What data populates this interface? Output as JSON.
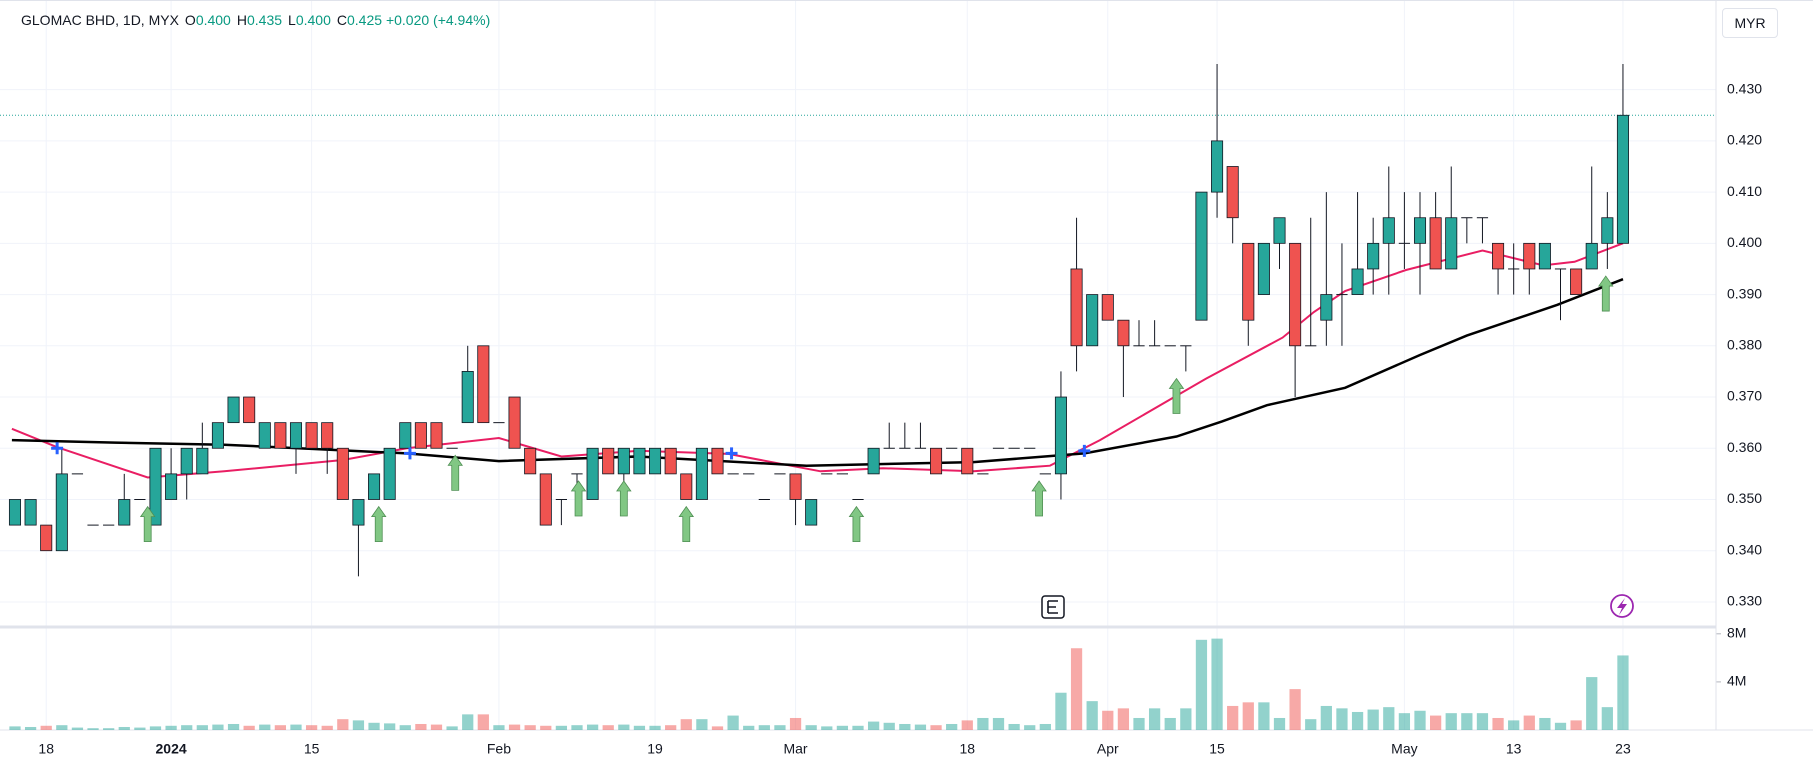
{
  "header": {
    "symbol": "GLOMAC BHD, 1D, MYX",
    "fields": [
      {
        "label": "O",
        "value": "0.400"
      },
      {
        "label": "H",
        "value": "0.435"
      },
      {
        "label": "L",
        "value": "0.400"
      },
      {
        "label": "C",
        "value": "0.425"
      }
    ],
    "change": "+0.020",
    "change_pct": "(+4.94%)",
    "currency": "MYR"
  },
  "chart_data": {
    "type": "candlestick",
    "up_color": "#26a69a",
    "down_color": "#ef5350",
    "grid": true,
    "categories": [
      null,
      null,
      "18",
      null,
      null,
      null,
      null,
      null,
      null,
      null,
      "2024",
      null,
      null,
      null,
      null,
      null,
      null,
      null,
      null,
      "15",
      null,
      null,
      null,
      null,
      null,
      null,
      null,
      null,
      null,
      null,
      null,
      "Feb",
      null,
      null,
      null,
      null,
      null,
      null,
      null,
      null,
      null,
      "19",
      null,
      null,
      null,
      null,
      null,
      null,
      null,
      null,
      "Mar",
      null,
      null,
      null,
      null,
      null,
      null,
      null,
      null,
      null,
      null,
      "18",
      null,
      null,
      null,
      null,
      null,
      null,
      null,
      null,
      "Apr",
      null,
      null,
      null,
      null,
      null,
      null,
      "15",
      null,
      null,
      null,
      null,
      null,
      null,
      null,
      null,
      null,
      null,
      null,
      "May",
      null,
      null,
      null,
      null,
      null,
      null,
      "13",
      null,
      null,
      null,
      null,
      null,
      null,
      "23"
    ],
    "xlim": [
      -0.96,
      108.96
    ],
    "ylim": [
      0.3255,
      0.4475
    ],
    "yticks": [
      {
        "value": 0.33,
        "label": "0.330"
      },
      {
        "value": 0.34,
        "label": "0.340"
      },
      {
        "value": 0.35,
        "label": "0.350"
      },
      {
        "value": 0.36,
        "label": "0.360"
      },
      {
        "value": 0.37,
        "label": "0.370"
      },
      {
        "value": 0.38,
        "label": "0.380"
      },
      {
        "value": 0.39,
        "label": "0.390"
      },
      {
        "value": 0.4,
        "label": "0.400"
      },
      {
        "value": 0.41,
        "label": "0.410"
      },
      {
        "value": 0.42,
        "label": "0.420"
      },
      {
        "value": 0.43,
        "label": "0.430"
      }
    ],
    "ohlc": [
      [
        0.345,
        0.35,
        0.345,
        0.35
      ],
      [
        0.345,
        0.35,
        0.345,
        0.35
      ],
      [
        0.345,
        0.345,
        0.34,
        0.34
      ],
      [
        0.34,
        0.36,
        0.34,
        0.355
      ],
      [
        0.355,
        0.355,
        0.355,
        0.355
      ],
      [
        0.345,
        0.345,
        0.345,
        0.345
      ],
      [
        0.345,
        0.345,
        0.345,
        0.345
      ],
      [
        0.345,
        0.355,
        0.345,
        0.35
      ],
      [
        0.35,
        0.35,
        0.35,
        0.35
      ],
      [
        0.345,
        0.36,
        0.345,
        0.36
      ],
      [
        0.35,
        0.36,
        0.35,
        0.355
      ],
      [
        0.355,
        0.36,
        0.35,
        0.36
      ],
      [
        0.355,
        0.365,
        0.355,
        0.36
      ],
      [
        0.36,
        0.365,
        0.36,
        0.365
      ],
      [
        0.365,
        0.37,
        0.365,
        0.37
      ],
      [
        0.37,
        0.37,
        0.365,
        0.365
      ],
      [
        0.36,
        0.365,
        0.36,
        0.365
      ],
      [
        0.365,
        0.365,
        0.36,
        0.36
      ],
      [
        0.36,
        0.365,
        0.355,
        0.365
      ],
      [
        0.365,
        0.365,
        0.36,
        0.36
      ],
      [
        0.365,
        0.365,
        0.355,
        0.36
      ],
      [
        0.36,
        0.36,
        0.35,
        0.35
      ],
      [
        0.345,
        0.35,
        0.335,
        0.35
      ],
      [
        0.35,
        0.355,
        0.35,
        0.355
      ],
      [
        0.35,
        0.36,
        0.35,
        0.36
      ],
      [
        0.36,
        0.365,
        0.36,
        0.365
      ],
      [
        0.365,
        0.365,
        0.36,
        0.36
      ],
      [
        0.365,
        0.365,
        0.36,
        0.36
      ],
      [
        0.36,
        0.36,
        0.36,
        0.36
      ],
      [
        0.365,
        0.38,
        0.365,
        0.375
      ],
      [
        0.38,
        0.38,
        0.365,
        0.365
      ],
      [
        0.365,
        0.365,
        0.365,
        0.365
      ],
      [
        0.37,
        0.37,
        0.36,
        0.36
      ],
      [
        0.36,
        0.36,
        0.355,
        0.355
      ],
      [
        0.355,
        0.355,
        0.345,
        0.345
      ],
      [
        0.35,
        0.35,
        0.345,
        0.35
      ],
      [
        0.355,
        0.355,
        0.35,
        0.355
      ],
      [
        0.35,
        0.36,
        0.35,
        0.36
      ],
      [
        0.36,
        0.36,
        0.355,
        0.355
      ],
      [
        0.355,
        0.36,
        0.35,
        0.36
      ],
      [
        0.355,
        0.36,
        0.355,
        0.36
      ],
      [
        0.355,
        0.36,
        0.355,
        0.36
      ],
      [
        0.36,
        0.36,
        0.355,
        0.355
      ],
      [
        0.355,
        0.355,
        0.35,
        0.35
      ],
      [
        0.35,
        0.36,
        0.35,
        0.36
      ],
      [
        0.36,
        0.36,
        0.355,
        0.355
      ],
      [
        0.355,
        0.355,
        0.355,
        0.355
      ],
      [
        0.355,
        0.355,
        0.355,
        0.355
      ],
      [
        0.35,
        0.35,
        0.35,
        0.35
      ],
      [
        0.355,
        0.355,
        0.355,
        0.355
      ],
      [
        0.355,
        0.355,
        0.345,
        0.35
      ],
      [
        0.345,
        0.35,
        0.345,
        0.35
      ],
      [
        0.355,
        0.355,
        0.355,
        0.355
      ],
      [
        0.355,
        0.355,
        0.355,
        0.355
      ],
      [
        0.35,
        0.35,
        0.35,
        0.35
      ],
      [
        0.355,
        0.36,
        0.355,
        0.36
      ],
      [
        0.36,
        0.365,
        0.36,
        0.36
      ],
      [
        0.36,
        0.365,
        0.36,
        0.36
      ],
      [
        0.36,
        0.365,
        0.36,
        0.36
      ],
      [
        0.36,
        0.36,
        0.355,
        0.355
      ],
      [
        0.36,
        0.36,
        0.36,
        0.36
      ],
      [
        0.36,
        0.36,
        0.355,
        0.355
      ],
      [
        0.355,
        0.355,
        0.355,
        0.355
      ],
      [
        0.36,
        0.36,
        0.36,
        0.36
      ],
      [
        0.36,
        0.36,
        0.36,
        0.36
      ],
      [
        0.36,
        0.36,
        0.36,
        0.36
      ],
      [
        0.355,
        0.355,
        0.355,
        0.355
      ],
      [
        0.355,
        0.375,
        0.35,
        0.37
      ],
      [
        0.395,
        0.405,
        0.375,
        0.38
      ],
      [
        0.38,
        0.39,
        0.38,
        0.39
      ],
      [
        0.39,
        0.39,
        0.385,
        0.385
      ],
      [
        0.385,
        0.385,
        0.37,
        0.38
      ],
      [
        0.38,
        0.385,
        0.38,
        0.38
      ],
      [
        0.38,
        0.385,
        0.38,
        0.38
      ],
      [
        0.38,
        0.38,
        0.38,
        0.38
      ],
      [
        0.38,
        0.38,
        0.375,
        0.38
      ],
      [
        0.385,
        0.41,
        0.385,
        0.41
      ],
      [
        0.41,
        0.435,
        0.405,
        0.42
      ],
      [
        0.415,
        0.415,
        0.4,
        0.405
      ],
      [
        0.4,
        0.4,
        0.38,
        0.385
      ],
      [
        0.39,
        0.4,
        0.39,
        0.4
      ],
      [
        0.4,
        0.405,
        0.395,
        0.405
      ],
      [
        0.4,
        0.4,
        0.37,
        0.38
      ],
      [
        0.38,
        0.405,
        0.38,
        0.38
      ],
      [
        0.385,
        0.41,
        0.38,
        0.39
      ],
      [
        0.39,
        0.4,
        0.38,
        0.39
      ],
      [
        0.39,
        0.41,
        0.39,
        0.395
      ],
      [
        0.395,
        0.405,
        0.39,
        0.4
      ],
      [
        0.4,
        0.415,
        0.39,
        0.405
      ],
      [
        0.4,
        0.41,
        0.395,
        0.4
      ],
      [
        0.4,
        0.41,
        0.39,
        0.405
      ],
      [
        0.405,
        0.41,
        0.395,
        0.395
      ],
      [
        0.395,
        0.415,
        0.395,
        0.405
      ],
      [
        0.405,
        0.405,
        0.4,
        0.405
      ],
      [
        0.405,
        0.405,
        0.4,
        0.405
      ],
      [
        0.4,
        0.4,
        0.39,
        0.395
      ],
      [
        0.395,
        0.4,
        0.39,
        0.395
      ],
      [
        0.4,
        0.4,
        0.39,
        0.395
      ],
      [
        0.395,
        0.4,
        0.395,
        0.4
      ],
      [
        0.395,
        0.395,
        0.385,
        0.395
      ],
      [
        0.395,
        0.395,
        0.39,
        0.39
      ],
      [
        0.395,
        0.415,
        0.395,
        0.4
      ],
      [
        0.4,
        0.41,
        0.395,
        0.405
      ],
      [
        0.4,
        0.435,
        0.4,
        0.425
      ]
    ],
    "volume": [
      300000,
      250000,
      350000,
      400000,
      200000,
      150000,
      150000,
      250000,
      200000,
      300000,
      350000,
      400000,
      400000,
      450000,
      500000,
      350000,
      450000,
      400000,
      450000,
      400000,
      350000,
      900000,
      800000,
      600000,
      550000,
      400000,
      500000,
      450000,
      300000,
      1300000,
      1300000,
      400000,
      450000,
      400000,
      350000,
      350000,
      400000,
      450000,
      400000,
      450000,
      350000,
      350000,
      400000,
      900000,
      900000,
      300000,
      1200000,
      350000,
      400000,
      400000,
      1000000,
      400000,
      300000,
      350000,
      350000,
      700000,
      600000,
      500000,
      450000,
      400000,
      500000,
      800000,
      1000000,
      1000000,
      500000,
      400000,
      500000,
      3100000,
      6800000,
      2400000,
      1600000,
      1800000,
      1000000,
      1800000,
      1000000,
      1800000,
      7500000,
      7600000,
      2000000,
      2300000,
      2300000,
      1000000,
      3400000,
      900000,
      2000000,
      1800000,
      1500000,
      1700000,
      1900000,
      1400000,
      1600000,
      1200000,
      1400000,
      1400000,
      1400000,
      1000000,
      800000,
      1200000,
      1000000,
      600000,
      800000,
      4400000,
      1900000,
      6200000
    ],
    "volume_ylim": [
      0,
      8400000
    ],
    "volume_yticks": [
      {
        "value": 4000000,
        "label": "4M"
      },
      {
        "value": 8000000,
        "label": "8M"
      }
    ],
    "lines": [
      {
        "color": "#e91e63",
        "x": [
          -0.2,
          2.7,
          8.5,
          13.4,
          21,
          25.1,
          31,
          35,
          39.9,
          45.7,
          51.6,
          55.6,
          61.4,
          66.3,
          69.5,
          76.3,
          81.2,
          83.2,
          85.2,
          89.1,
          94,
          97.9,
          99.9,
          103
        ],
        "values": [
          0.3638,
          0.3602,
          0.3543,
          0.3555,
          0.3577,
          0.36,
          0.362,
          0.3584,
          0.3595,
          0.3589,
          0.3555,
          0.3561,
          0.3555,
          0.3566,
          0.3616,
          0.3736,
          0.3816,
          0.3866,
          0.3907,
          0.3948,
          0.3986,
          0.3957,
          0.3964,
          0.4
        ]
      },
      {
        "color": "#000000",
        "x": [
          -0.2,
          6.4,
          13.4,
          25.1,
          31,
          39.9,
          50.7,
          61.4,
          68.5,
          74.4,
          77.3,
          80.2,
          85.2,
          90,
          93,
          98.8,
          103
        ],
        "values": [
          0.3616,
          0.3611,
          0.3607,
          0.359,
          0.3575,
          0.3584,
          0.3566,
          0.3573,
          0.359,
          0.3623,
          0.3652,
          0.3684,
          0.3718,
          0.3782,
          0.382,
          0.388,
          0.393
        ]
      }
    ],
    "signals": {
      "color": "#81c784",
      "x": [
        8.5,
        23.3,
        28.2,
        36.1,
        39,
        43,
        53.9,
        65.6,
        74.4,
        101.9
      ],
      "values": [
        0.349,
        0.349,
        0.359,
        0.354,
        0.354,
        0.349,
        0.349,
        0.354,
        0.374,
        0.394
      ]
    },
    "crosses": {
      "color": "#2962ff",
      "x": [
        2.7,
        25.3,
        45.9,
        68.5
      ],
      "values": [
        0.36,
        0.359,
        0.359,
        0.3595
      ]
    },
    "last_price": 0.425,
    "last_price_color": "#26a69a"
  }
}
